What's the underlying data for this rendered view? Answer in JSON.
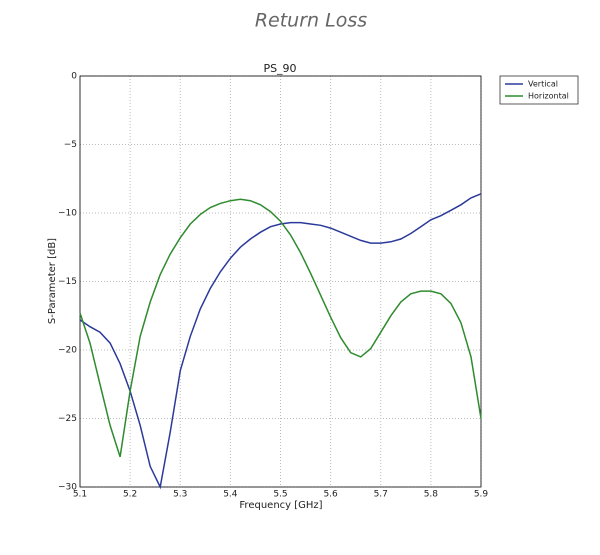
{
  "chart_data": {
    "type": "line",
    "title": "Return Loss",
    "subtitle": "PS_90",
    "x_label": "Frequency [GHz]",
    "y_label": "S-Parameter [dB]",
    "x": [
      5.1,
      5.12,
      5.14,
      5.16,
      5.18,
      5.2,
      5.22,
      5.24,
      5.26,
      5.28,
      5.3,
      5.32,
      5.34,
      5.36,
      5.38,
      5.4,
      5.42,
      5.44,
      5.46,
      5.48,
      5.5,
      5.52,
      5.54,
      5.56,
      5.58,
      5.6,
      5.62,
      5.64,
      5.66,
      5.68,
      5.7,
      5.72,
      5.74,
      5.76,
      5.78,
      5.8,
      5.82,
      5.84,
      5.86,
      5.88,
      5.9
    ],
    "series": [
      {
        "name": "Vertical",
        "color": "#2b3a9a",
        "values": [
          -17.8,
          -18.3,
          -18.7,
          -19.5,
          -21,
          -23,
          -25.5,
          -28.5,
          -30,
          -26,
          -21.5,
          -19,
          -17,
          -15.5,
          -14.3,
          -13.3,
          -12.5,
          -11.9,
          -11.4,
          -11.0,
          -10.8,
          -10.7,
          -10.7,
          -10.8,
          -10.9,
          -11.1,
          -11.4,
          -11.7,
          -12.0,
          -12.2,
          -12.2,
          -12.1,
          -11.9,
          -11.5,
          -11.0,
          -10.5,
          -10.2,
          -9.8,
          -9.4,
          -8.9,
          -8.6
        ]
      },
      {
        "name": "Horizontal",
        "color": "#2e8b2e",
        "values": [
          -17.3,
          -19.5,
          -22.5,
          -25.5,
          -27.8,
          -23,
          -19,
          -16.5,
          -14.5,
          -13,
          -11.8,
          -10.8,
          -10.1,
          -9.6,
          -9.3,
          -9.1,
          -9.0,
          -9.1,
          -9.4,
          -9.9,
          -10.6,
          -11.6,
          -12.9,
          -14.4,
          -16.0,
          -17.6,
          -19.1,
          -20.2,
          -20.5,
          -19.9,
          -18.7,
          -17.5,
          -16.5,
          -15.9,
          -15.7,
          -15.7,
          -15.9,
          -16.6,
          -18.0,
          -20.5,
          -25
        ]
      }
    ],
    "xlim": [
      5.1,
      5.9
    ],
    "xticks": [
      5.1,
      5.2,
      5.3,
      5.4,
      5.5,
      5.6,
      5.7,
      5.8,
      5.9
    ],
    "ylim": [
      -30,
      0
    ],
    "yticks": [
      0,
      {
        "value": -5,
        "label": "−5"
      },
      {
        "value": -10,
        "label": "−10"
      },
      {
        "value": -15,
        "label": "−15"
      },
      {
        "value": -20,
        "label": "−20"
      },
      {
        "value": -25,
        "label": "−25"
      },
      {
        "value": -30,
        "label": "−30"
      }
    ],
    "grid": true,
    "legend": "right"
  }
}
